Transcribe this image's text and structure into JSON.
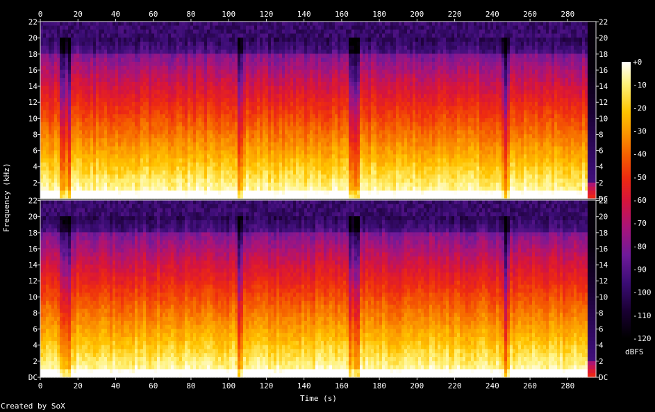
{
  "app": {
    "credit": "Created by SoX"
  },
  "chart_data": {
    "type": "heatmap",
    "title": "",
    "xlabel": "Time (s)",
    "ylabel": "Frequency (kHz)",
    "xlim": [
      0,
      295
    ],
    "x_ticks": [
      0,
      20,
      40,
      60,
      80,
      100,
      120,
      140,
      160,
      180,
      200,
      220,
      240,
      260,
      280
    ],
    "x_tick_labels": [
      "0",
      "20",
      "40",
      "60",
      "80",
      "100",
      "120",
      "140",
      "160",
      "180",
      "200",
      "220",
      "240",
      "260",
      "280"
    ],
    "ylim": [
      0,
      22.05
    ],
    "y_ticks": [
      0,
      2,
      4,
      6,
      8,
      10,
      12,
      14,
      16,
      18,
      20,
      22
    ],
    "y_tick_labels": [
      "DC",
      "2",
      "4",
      "6",
      "8",
      "10",
      "12",
      "14",
      "16",
      "18",
      "20",
      "22"
    ],
    "channels": [
      {
        "channel": 1,
        "y_tick_labels_left": [
          "",
          "2",
          "4",
          "6",
          "8",
          "10",
          "12",
          "14",
          "16",
          "18",
          "20",
          "22"
        ]
      },
      {
        "channel": 2,
        "y_tick_labels_left": [
          "DC",
          "2",
          "4",
          "6",
          "8",
          "10",
          "12",
          "14",
          "16",
          "18",
          "20",
          "22"
        ]
      }
    ],
    "colorbar": {
      "label": "dBFS",
      "range": [
        -120,
        0
      ],
      "ticks": [
        0,
        -10,
        -20,
        -30,
        -40,
        -50,
        -60,
        -70,
        -80,
        -90,
        -100,
        -110,
        -120
      ],
      "tick_labels": [
        "+0",
        "-10",
        "-20",
        "-30",
        "-40",
        "-50",
        "-60",
        "-70",
        "-80",
        "-90",
        "-100",
        "-110",
        "-120"
      ]
    },
    "spectral_content": {
      "bandwidth_cutoff_khz": 20,
      "signal_end_s": 290,
      "quiet_dips_s": [
        12,
        15,
        106,
        165,
        168,
        247
      ]
    }
  },
  "colors": {
    "background": "#000000",
    "text": "#ffffff",
    "frame": "#dddddd",
    "palette_stops": [
      "#000000",
      "#1a0033",
      "#3b0d75",
      "#6e1a9a",
      "#a8147a",
      "#d8153a",
      "#ee2b10",
      "#f55e00",
      "#fb9400",
      "#ffc400",
      "#fff27a",
      "#ffffff"
    ]
  }
}
